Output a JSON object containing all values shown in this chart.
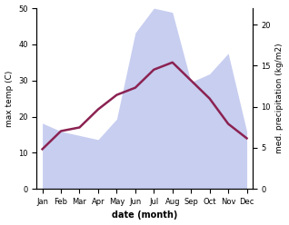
{
  "months": [
    "Jan",
    "Feb",
    "Mar",
    "Apr",
    "May",
    "Jun",
    "Jul",
    "Aug",
    "Sep",
    "Oct",
    "Nov",
    "Dec"
  ],
  "month_indices": [
    0,
    1,
    2,
    3,
    4,
    5,
    6,
    7,
    8,
    9,
    10,
    11
  ],
  "temp": [
    11,
    16,
    17,
    22,
    26,
    28,
    33,
    35,
    30,
    25,
    18,
    14
  ],
  "precip": [
    8.0,
    7.0,
    6.5,
    6.0,
    8.5,
    19.0,
    22.0,
    21.5,
    13.0,
    14.0,
    16.5,
    7.0
  ],
  "temp_color": "#8B2252",
  "precip_fill_color": "#aab4e8",
  "precip_fill_alpha": 0.65,
  "left_ylabel": "max temp (C)",
  "right_ylabel": "med. precipitation (kg/m2)",
  "xlabel": "date (month)",
  "ylim_left": [
    0,
    50
  ],
  "ylim_right": [
    0,
    22
  ],
  "left_yticks": [
    0,
    10,
    20,
    30,
    40,
    50
  ],
  "right_yticks": [
    0,
    5,
    10,
    15,
    20
  ],
  "bg_color": "#ffffff",
  "line_width": 1.8,
  "label_fontsize": 6.5,
  "xlabel_fontsize": 7,
  "tick_fontsize": 6.0
}
